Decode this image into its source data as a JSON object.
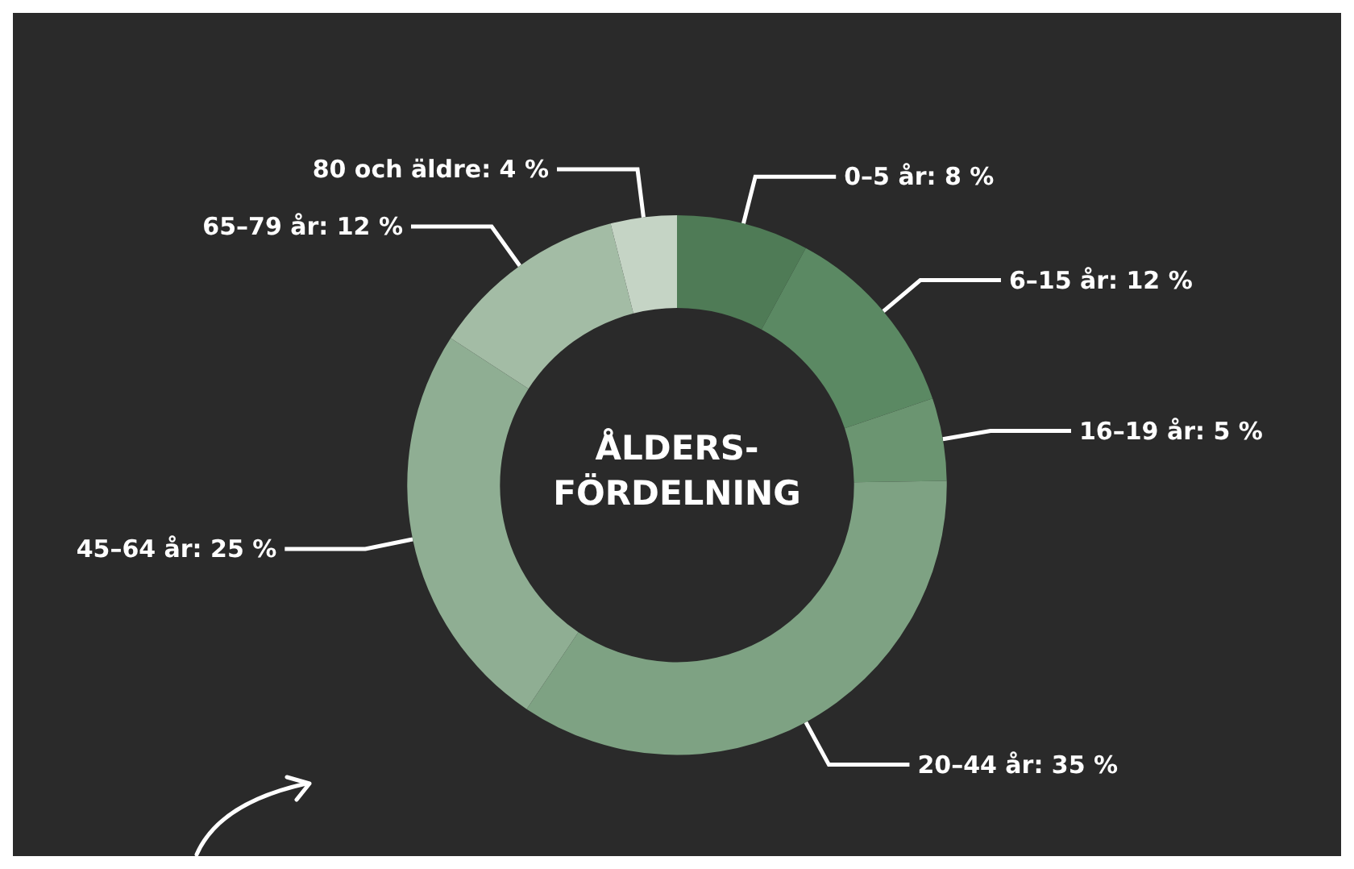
{
  "chart_data": {
    "type": "donut",
    "title": "ÅLDERS-\nFÖRDELNING",
    "categories": [
      "0–5 år",
      "6–15 år",
      "16–19 år",
      "20–44 år",
      "45–64 år",
      "65–79 år",
      "80 och äldre"
    ],
    "values": [
      8,
      12,
      5,
      35,
      25,
      12,
      4
    ],
    "value_labels": [
      "8 %",
      "12 %",
      "5 %",
      "35 %",
      "25 %",
      "12 %",
      "4 %"
    ],
    "colors": [
      "#4f7b56",
      "#5b8963",
      "#6b9571",
      "#7ea283",
      "#8fae93",
      "#a3bca5",
      "#c5d4c5"
    ],
    "legend": false
  }
}
